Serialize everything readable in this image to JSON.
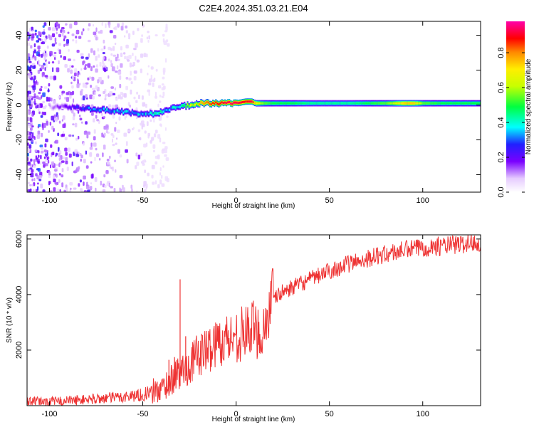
{
  "title": "C2E4.2024.351.03.21.E04",
  "chart_data": [
    {
      "type": "heatmap",
      "xlabel": "Height of straight line (km)",
      "ylabel": "Frequency (Hz)",
      "xlim": [
        -112,
        131
      ],
      "ylim": [
        -50,
        48
      ],
      "xticks": [
        -100,
        -50,
        0,
        50,
        100
      ],
      "yticks": [
        -40,
        -20,
        0,
        20,
        40
      ],
      "ridge": {
        "x": [
          -100,
          -90,
          -80,
          -70,
          -60,
          -50,
          -45,
          -40,
          -35,
          -30,
          -25,
          -20,
          -15,
          -10,
          -5,
          0,
          5,
          8,
          10,
          15,
          20,
          30,
          40,
          50,
          60,
          70,
          80,
          90,
          95,
          100,
          110,
          120,
          131
        ],
        "freq": [
          -1,
          -1,
          -2,
          -3,
          -4,
          -5,
          -5,
          -4,
          -2,
          -1,
          0,
          1,
          1,
          1,
          1,
          1,
          2,
          2,
          1,
          1,
          1,
          1,
          1,
          1,
          1,
          1,
          1,
          1,
          1,
          1,
          1,
          1,
          1
        ],
        "amplitude": [
          0.1,
          0.2,
          0.3,
          0.35,
          0.35,
          0.35,
          0.4,
          0.4,
          0.35,
          0.45,
          0.6,
          0.75,
          0.85,
          0.9,
          0.95,
          0.95,
          0.9,
          0.95,
          0.7,
          0.55,
          0.5,
          0.5,
          0.45,
          0.45,
          0.45,
          0.5,
          0.55,
          0.75,
          0.75,
          0.55,
          0.5,
          0.5,
          0.5
        ]
      }
    },
    {
      "type": "line",
      "xlabel": "Height of straight line (km)",
      "ylabel": "SNR (10 * v/v)",
      "xlim": [
        -112,
        131
      ],
      "ylim": [
        0,
        6150
      ],
      "xticks": [
        -100,
        -50,
        0,
        50,
        100
      ],
      "yticks": [
        2000,
        4000,
        6000
      ],
      "color": "#ee3333",
      "series": [
        {
          "x": [
            -112,
            -100,
            -90,
            -80,
            -70,
            -60,
            -50,
            -45,
            -40,
            -35,
            -32,
            -30,
            -28,
            -27,
            -25,
            -20,
            -15,
            -10,
            -5,
            0,
            5,
            10,
            13,
            15,
            18,
            20,
            25,
            30,
            40,
            50,
            60,
            70,
            80,
            90,
            100,
            110,
            120,
            131
          ],
          "values": [
            150,
            150,
            180,
            220,
            270,
            320,
            400,
            500,
            600,
            900,
            1200,
            1100,
            1400,
            1300,
            1500,
            1850,
            2000,
            2300,
            2400,
            2500,
            2650,
            2800,
            2550,
            2800,
            3500,
            3850,
            4100,
            4250,
            4550,
            4850,
            5100,
            5300,
            5450,
            5600,
            5700,
            5750,
            5800,
            5900
          ]
        }
      ],
      "spikes": [
        {
          "x": -30,
          "value": 4550
        },
        {
          "x": -33,
          "value": 1750
        },
        {
          "x": -36,
          "value": 1650
        },
        {
          "x": -27,
          "value": 2500
        }
      ]
    }
  ],
  "colorbar": {
    "label": "Normalized spectral amplitude",
    "ticks": [
      "0.0",
      "0.2",
      "0.4",
      "0.6",
      "0.8"
    ],
    "tick_values": [
      0,
      0.2,
      0.4,
      0.6,
      0.8
    ],
    "range": [
      0,
      0.98
    ]
  }
}
